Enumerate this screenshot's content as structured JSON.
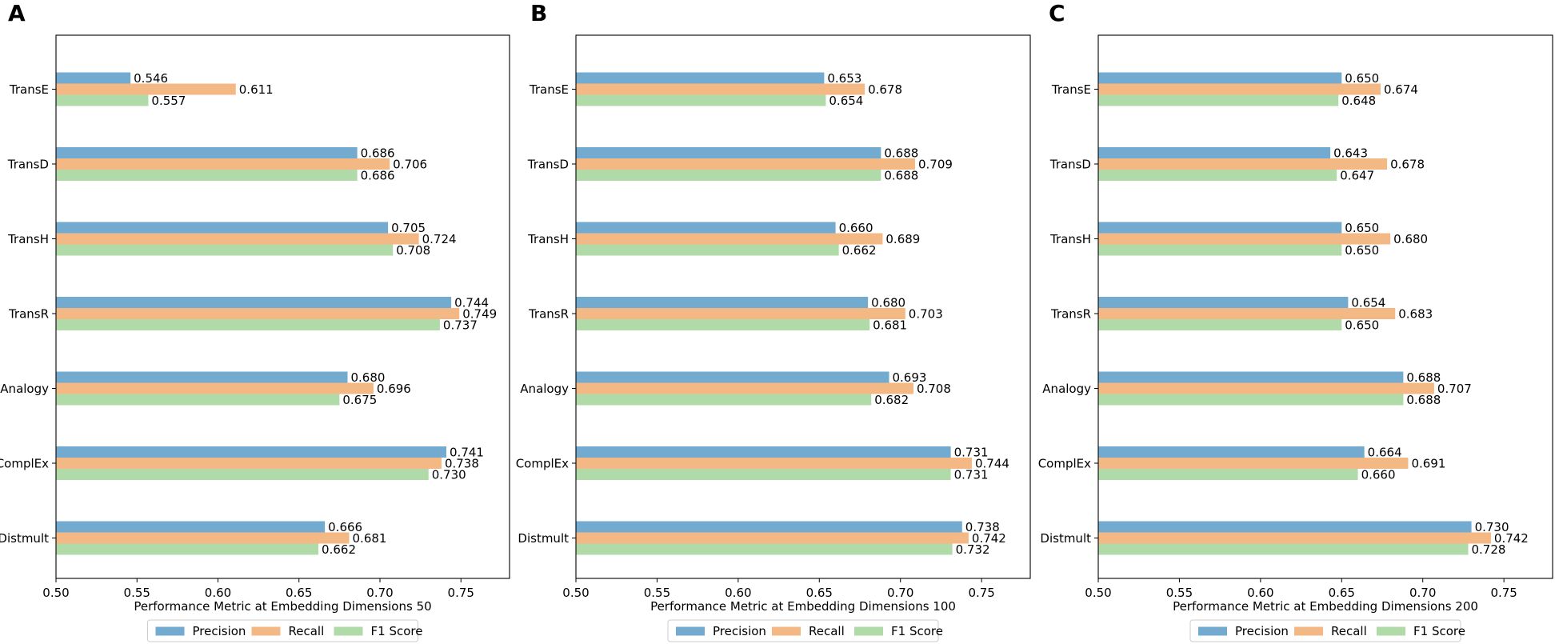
{
  "chart_data": [
    {
      "type": "bar",
      "orientation": "horizontal",
      "panel_label": "A",
      "categories": [
        "TransE",
        "TransD",
        "TransH",
        "TransR",
        "Analogy",
        "ComplEx",
        "Distmult"
      ],
      "series": [
        {
          "name": "Precision",
          "values": [
            0.546,
            0.686,
            0.705,
            0.744,
            0.68,
            0.741,
            0.666
          ],
          "labels": [
            "0.546",
            "0.686",
            "0.705",
            "0.744",
            "0.680",
            "0.741",
            "0.666"
          ]
        },
        {
          "name": "Recall",
          "values": [
            0.611,
            0.706,
            0.724,
            0.749,
            0.696,
            0.738,
            0.681
          ],
          "labels": [
            "0.611",
            "0.706",
            "0.724",
            "0.749",
            "0.696",
            "0.738",
            "0.681"
          ]
        },
        {
          "name": "F1 Score",
          "values": [
            0.557,
            0.686,
            0.708,
            0.737,
            0.675,
            0.73,
            0.662
          ],
          "labels": [
            "0.557",
            "0.686",
            "0.708",
            "0.737",
            "0.675",
            "0.730",
            "0.662"
          ]
        }
      ],
      "xlabel": "Performance Metric at Embedding Dimensions 50",
      "xlim": [
        0.5,
        0.78
      ],
      "xticks": [
        0.5,
        0.55,
        0.6,
        0.65,
        0.7,
        0.75
      ],
      "xtick_labels": [
        "0.50",
        "0.55",
        "0.60",
        "0.65",
        "0.70",
        "0.75"
      ],
      "legend": "bottom-center"
    },
    {
      "type": "bar",
      "orientation": "horizontal",
      "panel_label": "B",
      "categories": [
        "TransE",
        "TransD",
        "TransH",
        "TransR",
        "Analogy",
        "ComplEx",
        "Distmult"
      ],
      "series": [
        {
          "name": "Precision",
          "values": [
            0.653,
            0.688,
            0.66,
            0.68,
            0.693,
            0.731,
            0.738
          ],
          "labels": [
            "0.653",
            "0.688",
            "0.660",
            "0.680",
            "0.693",
            "0.731",
            "0.738"
          ]
        },
        {
          "name": "Recall",
          "values": [
            0.678,
            0.709,
            0.689,
            0.703,
            0.708,
            0.744,
            0.742
          ],
          "labels": [
            "0.678",
            "0.709",
            "0.689",
            "0.703",
            "0.708",
            "0.744",
            "0.742"
          ]
        },
        {
          "name": "F1 Score",
          "values": [
            0.654,
            0.688,
            0.662,
            0.681,
            0.682,
            0.731,
            0.732
          ],
          "labels": [
            "0.654",
            "0.688",
            "0.662",
            "0.681",
            "0.682",
            "0.731",
            "0.732"
          ]
        }
      ],
      "xlabel": "Performance Metric at Embedding Dimensions 100",
      "xlim": [
        0.5,
        0.78
      ],
      "xticks": [
        0.5,
        0.55,
        0.6,
        0.65,
        0.7,
        0.75
      ],
      "xtick_labels": [
        "0.50",
        "0.55",
        "0.60",
        "0.65",
        "0.70",
        "0.75"
      ],
      "legend": "bottom-center"
    },
    {
      "type": "bar",
      "orientation": "horizontal",
      "panel_label": "C",
      "categories": [
        "TransE",
        "TransD",
        "TransH",
        "TransR",
        "Analogy",
        "ComplEx",
        "Distmult"
      ],
      "series": [
        {
          "name": "Precision",
          "values": [
            0.65,
            0.643,
            0.65,
            0.654,
            0.688,
            0.664,
            0.73
          ],
          "labels": [
            "0.650",
            "0.643",
            "0.650",
            "0.654",
            "0.688",
            "0.664",
            "0.730"
          ]
        },
        {
          "name": "Recall",
          "values": [
            0.674,
            0.678,
            0.68,
            0.683,
            0.707,
            0.691,
            0.742
          ],
          "labels": [
            "0.674",
            "0.678",
            "0.680",
            "0.683",
            "0.707",
            "0.691",
            "0.742"
          ]
        },
        {
          "name": "F1 Score",
          "values": [
            0.648,
            0.647,
            0.65,
            0.65,
            0.688,
            0.66,
            0.728
          ],
          "labels": [
            "0.648",
            "0.647",
            "0.650",
            "0.650",
            "0.688",
            "0.660",
            "0.728"
          ]
        }
      ],
      "xlabel": "Performance Metric at Embedding Dimensions 200",
      "xlim": [
        0.5,
        0.78
      ],
      "xticks": [
        0.5,
        0.55,
        0.6,
        0.65,
        0.7,
        0.75
      ],
      "xtick_labels": [
        "0.50",
        "0.55",
        "0.60",
        "0.65",
        "0.70",
        "0.75"
      ],
      "legend": "bottom-center"
    }
  ],
  "colors": {
    "Precision": "#73abd0",
    "Recall": "#f4b884",
    "F1 Score": "#b0dba8"
  }
}
